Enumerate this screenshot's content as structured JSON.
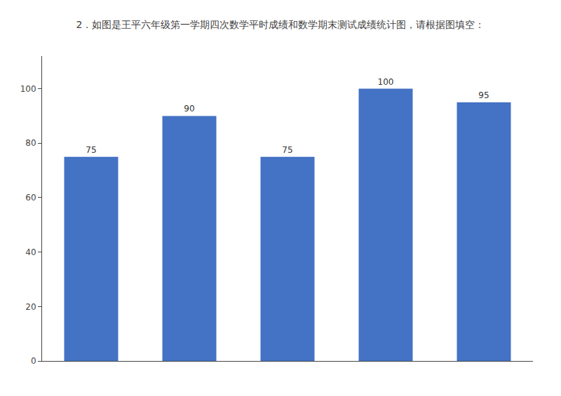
{
  "chart_data": {
    "type": "bar",
    "title": "2．如图是王平六年级第一学期四次数学平时成绩和数学期末测试成绩统计图，请根据图填空：",
    "categories": [
      null,
      null,
      null,
      null,
      null
    ],
    "values": [
      75,
      90,
      75,
      100,
      95
    ],
    "color": "#4472C4",
    "ylim": [
      0,
      112
    ],
    "yticks": [
      0,
      20,
      40,
      60,
      80,
      100
    ],
    "grid": false,
    "data_labels": true,
    "tick_labels": "y"
  }
}
